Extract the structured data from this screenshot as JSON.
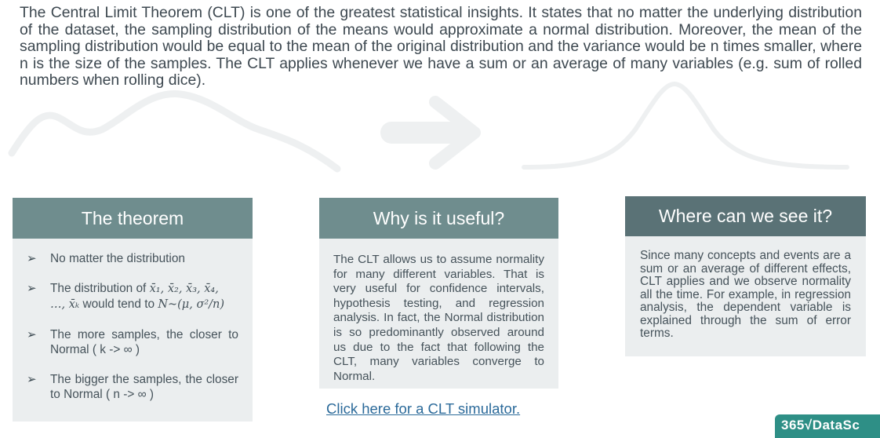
{
  "intro": "The Central Limit Theorem (CLT) is one of the greatest statistical insights. It states that no matter the underlying distribution of the dataset, the sampling distribution of the means would approximate a normal distribution. Moreover, the mean of the sampling distribution would be equal to the mean of the original distribution and the variance would be n times smaller, where n is the size of the samples. The CLT applies whenever we have a sum or an average of many variables (e.g. sum of rolled numbers when rolling dice).",
  "cards": {
    "theorem": {
      "title": "The theorem",
      "bullets": [
        "No matter the distribution",
        "The distribution of",
        "The more samples, the closer to Normal ( k -> ∞ )",
        "The bigger the samples, the closer to Normal ( n -> ∞ )"
      ],
      "formula_line1": "x̄₁, x̄₂, x̄₃, x̄₄,",
      "formula_line2_prefix": "…, x̄ₖ",
      "formula_line2_mid": "would tend to",
      "formula_line2_expr": "N~(μ, σ²/n)"
    },
    "useful": {
      "title": "Why is it useful?",
      "body": "The CLT allows us to assume normality for many different variables. That is very useful for confidence intervals, hypothesis testing, and regression analysis. In fact, the Normal distribution is so predominantly observed around us due to the fact that following the CLT, many variables converge to Normal."
    },
    "where": {
      "title": "Where can we see it?",
      "body": "Since many concepts and events are a sum or an average of different effects, CLT applies and we observe normality all the time. For example, in regression analysis, the dependent variable is explained through the sum of error terms."
    }
  },
  "link_text": "Click here for a CLT simulator.",
  "logo_text": "365√DataSc",
  "colors": {
    "header": "#6f8d8e",
    "header_dark": "#5a7276",
    "card_bg": "#ebeeef",
    "link": "#2b6a9a",
    "logo": "#2e8f86"
  }
}
